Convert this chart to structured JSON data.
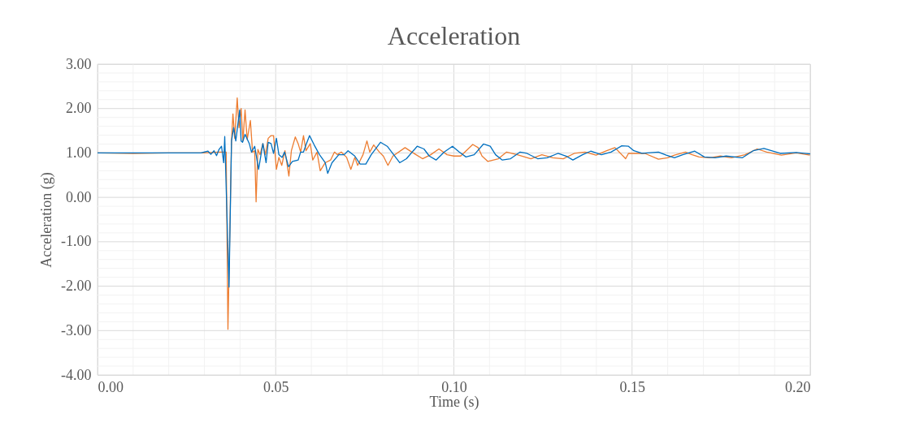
{
  "chart_data": {
    "type": "line",
    "title": "Acceleration",
    "xlabel": "Time (s)",
    "ylabel": "Acceleration (g)",
    "xlim": [
      0,
      0.2
    ],
    "ylim": [
      -4,
      3
    ],
    "xticks": [
      {
        "value": 0,
        "label": "0.00"
      },
      {
        "value": 0.01,
        "label": null
      },
      {
        "value": 0.02,
        "label": null
      },
      {
        "value": 0.03,
        "label": null
      },
      {
        "value": 0.04,
        "label": null
      },
      {
        "value": 0.05,
        "label": "0.05"
      },
      {
        "value": 0.06,
        "label": null
      },
      {
        "value": 0.07,
        "label": null
      },
      {
        "value": 0.08,
        "label": null
      },
      {
        "value": 0.09,
        "label": null
      },
      {
        "value": 0.1,
        "label": "0.10"
      },
      {
        "value": 0.11,
        "label": null
      },
      {
        "value": 0.12,
        "label": null
      },
      {
        "value": 0.13,
        "label": null
      },
      {
        "value": 0.14,
        "label": null
      },
      {
        "value": 0.15,
        "label": "0.15"
      },
      {
        "value": 0.16,
        "label": null
      },
      {
        "value": 0.17,
        "label": null
      },
      {
        "value": 0.18,
        "label": null
      },
      {
        "value": 0.19,
        "label": null
      },
      {
        "value": 0.2,
        "label": "0.20"
      }
    ],
    "yticks": [
      {
        "value": -4,
        "label": "-4.00"
      },
      {
        "value": -3.8,
        "label": null
      },
      {
        "value": -3.6,
        "label": null
      },
      {
        "value": -3.4,
        "label": null
      },
      {
        "value": -3.2,
        "label": null
      },
      {
        "value": -3,
        "label": "-3.00"
      },
      {
        "value": -2.8,
        "label": null
      },
      {
        "value": -2.6,
        "label": null
      },
      {
        "value": -2.4,
        "label": null
      },
      {
        "value": -2.2,
        "label": null
      },
      {
        "value": -2,
        "label": "-2.00"
      },
      {
        "value": -1.8,
        "label": null
      },
      {
        "value": -1.6,
        "label": null
      },
      {
        "value": -1.4,
        "label": null
      },
      {
        "value": -1.2,
        "label": null
      },
      {
        "value": -1,
        "label": "-1.00"
      },
      {
        "value": -0.8,
        "label": null
      },
      {
        "value": -0.6,
        "label": null
      },
      {
        "value": -0.4,
        "label": null
      },
      {
        "value": -0.2,
        "label": null
      },
      {
        "value": 0,
        "label": "0.00"
      },
      {
        "value": 0.2,
        "label": null
      },
      {
        "value": 0.4,
        "label": null
      },
      {
        "value": 0.6,
        "label": null
      },
      {
        "value": 0.8,
        "label": null
      },
      {
        "value": 1,
        "label": "1.00"
      },
      {
        "value": 1.2,
        "label": null
      },
      {
        "value": 1.4,
        "label": null
      },
      {
        "value": 1.6,
        "label": null
      },
      {
        "value": 1.8,
        "label": null
      },
      {
        "value": 2,
        "label": "2.00"
      },
      {
        "value": 2.2,
        "label": null
      },
      {
        "value": 2.4,
        "label": null
      },
      {
        "value": 2.6,
        "label": null
      },
      {
        "value": 2.8,
        "label": null
      },
      {
        "value": 3,
        "label": "3.00"
      }
    ],
    "grid": true,
    "marker": "none",
    "line_style": "solid",
    "series": [
      {
        "color": "#0070c0",
        "x": [
          0,
          0.029,
          0.031,
          0.0318,
          0.0327,
          0.0334,
          0.0341,
          0.0348,
          0.0354,
          0.0357,
          0.0369,
          0.0376,
          0.0382,
          0.0388,
          0.0399,
          0.0403,
          0.0407,
          0.0414,
          0.0426,
          0.0432,
          0.0441,
          0.0452,
          0.0464,
          0.0473,
          0.0479,
          0.0487,
          0.0494,
          0.0502,
          0.0509,
          0.0518,
          0.0525,
          0.0536,
          0.0547,
          0.0563,
          0.057,
          0.0578,
          0.0585,
          0.0595,
          0.0608,
          0.0623,
          0.0639,
          0.0646,
          0.0658,
          0.0677,
          0.0692,
          0.0703,
          0.0722,
          0.0737,
          0.0753,
          0.0768,
          0.0794,
          0.0813,
          0.0848,
          0.0867,
          0.0897,
          0.0916,
          0.0931,
          0.095,
          0.0973,
          0.0996,
          0.1015,
          0.1034,
          0.1057,
          0.1083,
          0.1102,
          0.1117,
          0.1136,
          0.1159,
          0.1186,
          0.1205,
          0.1235,
          0.1262,
          0.1292,
          0.1315,
          0.1334,
          0.1361,
          0.1384,
          0.1414,
          0.1441,
          0.1471,
          0.149,
          0.1505,
          0.1528,
          0.1574,
          0.1596,
          0.1619,
          0.1642,
          0.1676,
          0.1703,
          0.1733,
          0.1764,
          0.1809,
          0.184,
          0.187,
          0.1916,
          0.1961,
          0.2
        ],
        "values": [
          1.0,
          1.0,
          1.04,
          0.97,
          1.05,
          0.94,
          1.08,
          1.15,
          0.78,
          1.37,
          -2.02,
          1.27,
          1.57,
          1.27,
          1.97,
          1.27,
          1.24,
          1.42,
          1.21,
          1.02,
          1.15,
          0.63,
          1.21,
          0.78,
          1.24,
          1.21,
          0.99,
          1.33,
          0.96,
          0.9,
          1.02,
          0.69,
          0.81,
          0.84,
          1.02,
          1.02,
          1.18,
          1.39,
          1.18,
          0.96,
          0.78,
          0.54,
          0.78,
          0.96,
          0.96,
          1.05,
          0.93,
          0.75,
          0.75,
          0.96,
          1.24,
          1.15,
          0.78,
          0.87,
          1.15,
          1.09,
          0.93,
          0.84,
          1.02,
          1.15,
          1.02,
          0.91,
          0.96,
          1.2,
          1.15,
          0.96,
          0.84,
          0.87,
          1.02,
          0.99,
          0.87,
          0.89,
          0.99,
          0.93,
          0.84,
          0.96,
          1.04,
          0.96,
          1.02,
          1.16,
          1.15,
          1.05,
          0.99,
          1.02,
          0.95,
          0.89,
          0.96,
          1.04,
          0.91,
          0.89,
          0.93,
          0.89,
          1.05,
          1.1,
          0.99,
          1.01,
          0.98
        ]
      },
      {
        "color": "#ed7d31",
        "x": [
          0,
          0.01,
          0.02,
          0.03,
          0.034,
          0.0361,
          0.0366,
          0.0376,
          0.038,
          0.0385,
          0.0392,
          0.0397,
          0.0403,
          0.0408,
          0.0414,
          0.042,
          0.0429,
          0.0435,
          0.0441,
          0.0445,
          0.045,
          0.0456,
          0.0464,
          0.0471,
          0.0479,
          0.0487,
          0.0494,
          0.0502,
          0.0509,
          0.0517,
          0.0526,
          0.0537,
          0.0544,
          0.0555,
          0.0563,
          0.057,
          0.0578,
          0.0585,
          0.0597,
          0.0604,
          0.0616,
          0.0625,
          0.0639,
          0.0654,
          0.0665,
          0.0673,
          0.0684,
          0.0699,
          0.0711,
          0.0722,
          0.073,
          0.0745,
          0.0756,
          0.0764,
          0.0775,
          0.0791,
          0.0802,
          0.0815,
          0.0829,
          0.0863,
          0.0882,
          0.0912,
          0.0935,
          0.0958,
          0.0981,
          0.1,
          0.1019,
          0.1053,
          0.1068,
          0.1079,
          0.1095,
          0.1125,
          0.1148,
          0.1178,
          0.1216,
          0.1247,
          0.1277,
          0.1307,
          0.1338,
          0.1368,
          0.1399,
          0.1429,
          0.1452,
          0.1482,
          0.149,
          0.1536,
          0.1574,
          0.16,
          0.1619,
          0.165,
          0.1669,
          0.1688,
          0.1718,
          0.1748,
          0.1779,
          0.1817,
          0.1851,
          0.1878,
          0.1919,
          0.1961,
          0.1999
        ],
        "values": [
          1.0,
          0.99,
          1.0,
          1.0,
          1.02,
          1.02,
          -2.97,
          1.27,
          1.88,
          1.33,
          2.24,
          1.57,
          2.0,
          1.27,
          1.97,
          1.3,
          1.73,
          1.02,
          1.05,
          -0.1,
          1.08,
          0.96,
          1.21,
          0.96,
          1.33,
          1.39,
          1.39,
          0.63,
          0.9,
          0.72,
          1.05,
          0.48,
          1.05,
          1.36,
          1.21,
          1.02,
          1.39,
          1.05,
          1.21,
          0.84,
          1.02,
          0.6,
          0.78,
          0.84,
          1.02,
          0.96,
          1.02,
          0.9,
          0.63,
          0.9,
          0.72,
          0.96,
          1.27,
          1.02,
          1.18,
          1.02,
          0.93,
          0.72,
          0.93,
          1.12,
          1.02,
          0.87,
          0.96,
          1.09,
          0.96,
          0.93,
          0.93,
          1.19,
          1.12,
          0.93,
          0.81,
          0.87,
          1.02,
          0.96,
          0.87,
          0.96,
          0.89,
          0.87,
          0.99,
          1.02,
          0.95,
          1.05,
          1.12,
          0.87,
          0.99,
          0.99,
          0.86,
          0.89,
          0.95,
          1.02,
          0.96,
          0.91,
          0.89,
          0.93,
          0.89,
          0.96,
          1.09,
          1.02,
          0.95,
          1.0,
          0.95
        ]
      }
    ]
  }
}
